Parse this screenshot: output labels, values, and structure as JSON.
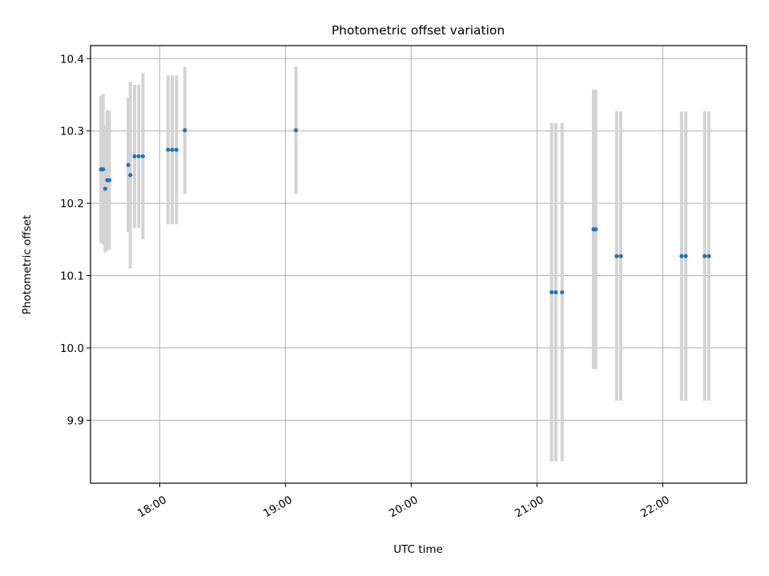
{
  "chart_data": {
    "type": "scatter",
    "title": "Photometric offset variation",
    "xlabel": "UTC time",
    "ylabel": "Photometric offset",
    "x_ticks": [
      "18:00",
      "19:00",
      "20:00",
      "21:00",
      "22:00"
    ],
    "x_tick_values": [
      "18:00",
      "19:00",
      "20:00",
      "21:00",
      "22:00"
    ],
    "xlim": [
      "17:27",
      "22:40"
    ],
    "y_ticks": [
      "9.9",
      "10.0",
      "10.1",
      "10.2",
      "10.3",
      "10.4"
    ],
    "ylim": [
      9.813,
      10.418
    ],
    "grid": true,
    "colors": {
      "point": "#1f77b4",
      "errorbar": "#d3d3d3"
    },
    "series": [
      {
        "points": [
          {
            "x": "17:32",
            "y": 10.247,
            "yerr": 0.102
          },
          {
            "x": "17:33",
            "y": 10.247,
            "yerr": 0.104
          },
          {
            "x": "17:34",
            "y": 10.22,
            "yerr": 0.088
          },
          {
            "x": "17:35",
            "y": 10.232,
            "yerr": 0.097
          },
          {
            "x": "17:36",
            "y": 10.232,
            "yerr": 0.096
          },
          {
            "x": "17:45",
            "y": 10.253,
            "yerr": 0.093
          },
          {
            "x": "17:46",
            "y": 10.239,
            "yerr": 0.129
          },
          {
            "x": "17:48",
            "y": 10.265,
            "yerr": 0.099
          },
          {
            "x": "17:50",
            "y": 10.265,
            "yerr": 0.099
          },
          {
            "x": "17:52",
            "y": 10.265,
            "yerr": 0.115
          },
          {
            "x": "18:04",
            "y": 10.274,
            "yerr": 0.103
          },
          {
            "x": "18:06",
            "y": 10.274,
            "yerr": 0.103
          },
          {
            "x": "18:08",
            "y": 10.274,
            "yerr": 0.103
          },
          {
            "x": "18:12",
            "y": 10.301,
            "yerr": 0.088
          },
          {
            "x": "19:05",
            "y": 10.301,
            "yerr": 0.088
          },
          {
            "x": "21:07",
            "y": 10.077,
            "yerr": 0.234
          },
          {
            "x": "21:09",
            "y": 10.077,
            "yerr": 0.234
          },
          {
            "x": "21:12",
            "y": 10.077,
            "yerr": 0.234
          },
          {
            "x": "21:27",
            "y": 10.164,
            "yerr": 0.193
          },
          {
            "x": "21:28",
            "y": 10.164,
            "yerr": 0.193
          },
          {
            "x": "21:38",
            "y": 10.127,
            "yerr": 0.2
          },
          {
            "x": "21:40",
            "y": 10.127,
            "yerr": 0.2
          },
          {
            "x": "22:09",
            "y": 10.127,
            "yerr": 0.2
          },
          {
            "x": "22:11",
            "y": 10.127,
            "yerr": 0.2
          },
          {
            "x": "22:20",
            "y": 10.127,
            "yerr": 0.2
          },
          {
            "x": "22:22",
            "y": 10.127,
            "yerr": 0.2
          }
        ]
      }
    ]
  }
}
